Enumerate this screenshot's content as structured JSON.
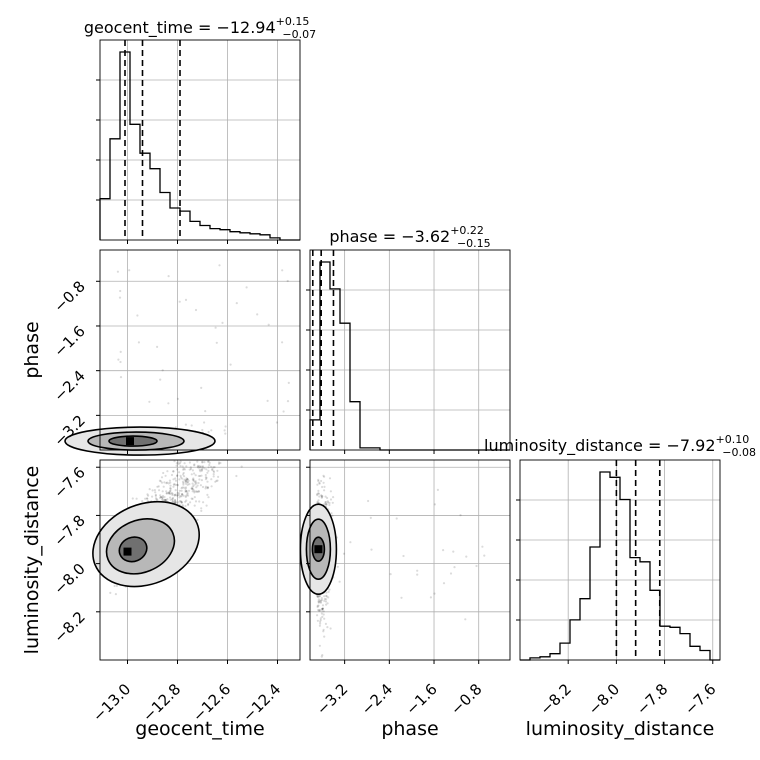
{
  "chart_data": {
    "type": "corner",
    "parameters": [
      "geocent_time",
      "phase",
      "luminosity_distance"
    ],
    "titles": [
      {
        "param": "geocent_time",
        "median": "−12.94",
        "plus": "+0.15",
        "minus": "−0.07"
      },
      {
        "param": "phase",
        "median": "−3.62",
        "plus": "+0.22",
        "minus": "−0.15"
      },
      {
        "param": "luminosity_distance",
        "median": "−7.92",
        "plus": "+0.10",
        "minus": "−0.08"
      }
    ],
    "ranges": {
      "geocent_time": [
        -13.11,
        -12.31
      ],
      "phase": [
        -3.82,
        -0.24
      ],
      "luminosity_distance": [
        -8.4,
        -7.57
      ]
    },
    "ticks": {
      "geocent_time": [
        {
          "v": -13.0,
          "label": "−13.0"
        },
        {
          "v": -12.8,
          "label": "−12.8"
        },
        {
          "v": -12.6,
          "label": "−12.6"
        },
        {
          "v": -12.4,
          "label": "−12.4"
        }
      ],
      "phase": [
        {
          "v": -3.2,
          "label": "−3.2"
        },
        {
          "v": -2.4,
          "label": "−2.4"
        },
        {
          "v": -1.6,
          "label": "−1.6"
        },
        {
          "v": -0.8,
          "label": "−0.8"
        }
      ],
      "luminosity_distance": [
        {
          "v": -8.2,
          "label": "−8.2"
        },
        {
          "v": -8.0,
          "label": "−8.0"
        },
        {
          "v": -7.8,
          "label": "−7.8"
        },
        {
          "v": -7.6,
          "label": "−7.6"
        }
      ]
    },
    "quantiles": {
      "geocent_time": [
        -13.01,
        -12.94,
        -12.79
      ],
      "phase": [
        -3.77,
        -3.62,
        -3.4
      ],
      "luminosity_distance": [
        -8.0,
        -7.92,
        -7.82
      ]
    },
    "histograms": {
      "geocent_time": {
        "edges": [
          -13.11,
          -13.07,
          -13.03,
          -12.99,
          -12.95,
          -12.91,
          -12.87,
          -12.83,
          -12.79,
          -12.75,
          -12.71,
          -12.67,
          -12.63,
          -12.59,
          -12.55,
          -12.51,
          -12.47,
          -12.43,
          -12.39,
          -12.35,
          -12.31
        ],
        "counts": [
          40,
          98,
          182,
          112,
          84,
          69,
          46,
          31,
          28,
          18,
          14,
          11,
          10,
          8,
          7,
          6,
          5,
          2,
          0,
          0
        ]
      },
      "phase": {
        "edges": [
          -3.82,
          -3.641,
          -3.462,
          -3.283,
          -3.104,
          -2.925,
          -2.746,
          -2.567,
          -2.388,
          -2.209,
          -2.03,
          -1.851,
          -1.672,
          -1.493,
          -1.314,
          -1.135,
          -0.956,
          -0.777,
          -0.598,
          -0.419,
          -0.24
        ],
        "counts": [
          28,
          175,
          150,
          118,
          45,
          2,
          2,
          0,
          0,
          0,
          0,
          0,
          0,
          0,
          0,
          0,
          0,
          0,
          0,
          0
        ]
      },
      "luminosity_distance": {
        "edges": [
          -8.4,
          -8.3585,
          -8.317,
          -8.2755,
          -8.234,
          -8.1925,
          -8.151,
          -8.1095,
          -8.068,
          -8.0265,
          -7.985,
          -7.9435,
          -7.902,
          -7.8605,
          -7.819,
          -7.7775,
          -7.736,
          -7.6945,
          -7.653,
          -7.6115,
          -7.57
        ],
        "counts": [
          0,
          2,
          3,
          6,
          16,
          38,
          58,
          107,
          178,
          173,
          152,
          97,
          93,
          66,
          32,
          31,
          25,
          13,
          9,
          0
        ]
      }
    },
    "contour_centers": [
      {
        "x": "geocent_time",
        "y": "phase",
        "cx": -12.99,
        "cy": -3.66
      },
      {
        "x": "geocent_time",
        "y": "luminosity_distance",
        "cx": -13.0,
        "cy": -7.95
      },
      {
        "x": "phase",
        "y": "luminosity_distance",
        "cx": -3.67,
        "cy": -7.94
      }
    ],
    "grid": true
  },
  "labels": {
    "geocent_time": "geocent_time",
    "phase": "phase",
    "luminosity_distance": "luminosity_distance"
  }
}
